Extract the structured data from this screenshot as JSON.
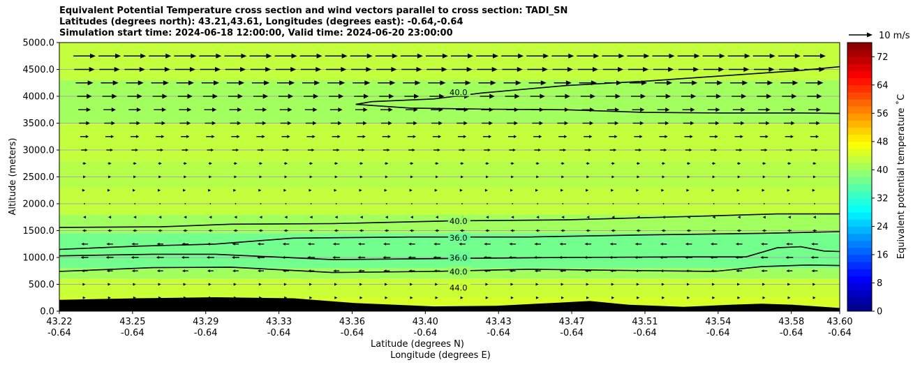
{
  "header": {
    "title_line1": "Equivalent Potential Temperature cross section and wind vectors parallel to cross section: TADI_SN",
    "title_line2": "Latitudes (degrees north): 43.21,43.61, Longitudes (degrees east): -0.64,-0.64",
    "title_line3": "Simulation start time: 2024-06-18 12:00:00, Valid time: 2024-06-20 23:00:00"
  },
  "chart_data": {
    "type": "heatmap",
    "xlabel_line1": "Latitude (degrees N)",
    "xlabel_line2": "Longitude (degrees E)",
    "ylabel": "Altitude (meters)",
    "ylim": [
      0,
      5000
    ],
    "xlim": [
      0,
      1
    ],
    "grid": "horizontal",
    "x_ticks": [
      {
        "lat": "43.22",
        "lon": "-0.64"
      },
      {
        "lat": "43.25",
        "lon": "-0.64"
      },
      {
        "lat": "43.29",
        "lon": "-0.64"
      },
      {
        "lat": "43.33",
        "lon": "-0.64"
      },
      {
        "lat": "43.36",
        "lon": "-0.64"
      },
      {
        "lat": "43.40",
        "lon": "-0.64"
      },
      {
        "lat": "43.43",
        "lon": "-0.64"
      },
      {
        "lat": "43.47",
        "lon": "-0.64"
      },
      {
        "lat": "43.51",
        "lon": "-0.64"
      },
      {
        "lat": "43.54",
        "lon": "-0.64"
      },
      {
        "lat": "43.58",
        "lon": "-0.64"
      },
      {
        "lat": "43.60",
        "lon": "-0.64"
      }
    ],
    "x_tick_positions": [
      0,
      0.0938,
      0.1876,
      0.2814,
      0.3752,
      0.469,
      0.5628,
      0.6566,
      0.7504,
      0.8442,
      0.938,
      1.0
    ],
    "y_ticks": [
      "0.0",
      "500.0",
      "1000.0",
      "1500.0",
      "2000.0",
      "2500.0",
      "3000.0",
      "3500.0",
      "4000.0",
      "4500.0",
      "5000.0"
    ],
    "y_tick_values": [
      0,
      500,
      1000,
      1500,
      2000,
      2500,
      3000,
      3500,
      4000,
      4500,
      5000
    ],
    "colorbar": {
      "label": "Equivalent potential temperature $^\\circ$C",
      "label_display": "Equivalent potential temperature ˚C",
      "min": 0,
      "max": 76,
      "step": 2,
      "ticks": [
        "0",
        "8",
        "16",
        "24",
        "32",
        "40",
        "48",
        "56",
        "64",
        "72"
      ],
      "tick_values": [
        0,
        8,
        16,
        24,
        32,
        40,
        48,
        56,
        64,
        72
      ],
      "colormap": "jet"
    },
    "vector_key": {
      "label": "10 m/s",
      "speed": 10
    },
    "fill_bands": [
      {
        "z_low": 0,
        "z_high": 260,
        "theta": 44.5
      },
      {
        "z_low": 260,
        "z_high": 600,
        "theta": 43.5
      },
      {
        "z_low": 600,
        "z_high": 800,
        "theta": 40.5
      },
      {
        "z_low": 800,
        "z_high": 1450,
        "theta": 37.0
      },
      {
        "z_low": 1450,
        "z_high": 1800,
        "theta": 40.5
      },
      {
        "z_low": 1800,
        "z_high": 2300,
        "theta": 43.0
      },
      {
        "z_low": 2300,
        "z_high": 2800,
        "theta": 42.0
      },
      {
        "z_low": 2800,
        "z_high": 3500,
        "theta": 43.0
      },
      {
        "z_low": 3500,
        "z_high": 4300,
        "theta": 40.5
      },
      {
        "z_low": 4300,
        "z_high": 5000,
        "theta": 43.0
      }
    ],
    "contours": [
      {
        "level": "40.0",
        "label_x": 0.5,
        "label_z": 4080,
        "points": [
          [
            0.38,
            3850
          ],
          [
            0.4,
            3900
          ],
          [
            0.48,
            3950
          ],
          [
            0.54,
            4060
          ],
          [
            0.65,
            4200
          ],
          [
            0.75,
            4280
          ],
          [
            0.85,
            4380
          ],
          [
            0.95,
            4480
          ],
          [
            1.0,
            4550
          ]
        ]
      },
      {
        "level": "40.0",
        "label_x": null,
        "label_z": null,
        "points": [
          [
            0.38,
            3850
          ],
          [
            0.45,
            3780
          ],
          [
            0.55,
            3760
          ],
          [
            0.65,
            3750
          ],
          [
            0.75,
            3700
          ],
          [
            0.85,
            3690
          ],
          [
            0.95,
            3690
          ],
          [
            1.0,
            3680
          ]
        ]
      },
      {
        "level": "40.0",
        "label_x": 0.5,
        "label_z": 1680,
        "points": [
          [
            0,
            1560
          ],
          [
            0.13,
            1570
          ],
          [
            0.22,
            1620
          ],
          [
            0.35,
            1630
          ],
          [
            0.5,
            1680
          ],
          [
            0.65,
            1700
          ],
          [
            0.8,
            1760
          ],
          [
            0.92,
            1810
          ],
          [
            1.0,
            1810
          ]
        ]
      },
      {
        "level": "36.0",
        "label_x": 0.5,
        "label_z": 1370,
        "points": [
          [
            0,
            1150
          ],
          [
            0.1,
            1210
          ],
          [
            0.2,
            1250
          ],
          [
            0.3,
            1360
          ],
          [
            0.45,
            1380
          ],
          [
            0.6,
            1380
          ],
          [
            0.75,
            1420
          ],
          [
            0.9,
            1450
          ],
          [
            1.0,
            1480
          ]
        ]
      },
      {
        "level": "36.0",
        "label_x": 0.5,
        "label_z": 1000,
        "points": [
          [
            0,
            1030
          ],
          [
            0.12,
            1060
          ],
          [
            0.2,
            1060
          ],
          [
            0.35,
            960
          ],
          [
            0.5,
            980
          ],
          [
            0.65,
            1000
          ],
          [
            0.8,
            1010
          ],
          [
            0.88,
            1010
          ],
          [
            0.92,
            1180
          ],
          [
            0.95,
            1200
          ],
          [
            0.98,
            1120
          ],
          [
            1.0,
            1110
          ]
        ]
      },
      {
        "level": "40.0",
        "label_x": 0.5,
        "label_z": 740,
        "points": [
          [
            0,
            740
          ],
          [
            0.12,
            810
          ],
          [
            0.22,
            820
          ],
          [
            0.35,
            720
          ],
          [
            0.48,
            740
          ],
          [
            0.6,
            780
          ],
          [
            0.72,
            760
          ],
          [
            0.84,
            740
          ],
          [
            0.9,
            830
          ],
          [
            0.96,
            860
          ],
          [
            1.0,
            850
          ]
        ]
      },
      {
        "level": "44.0",
        "label_x": 0.5,
        "label_z": 440,
        "points": []
      }
    ],
    "wind_vectors": {
      "rows_z": [
        250,
        500,
        750,
        1000,
        1250,
        1500,
        1750,
        2000,
        2250,
        2500,
        2750,
        3000,
        3250,
        3500,
        3750,
        4000,
        4250,
        4500,
        4750
      ],
      "row_u": [
        1.0,
        0.8,
        -2.6,
        -3.2,
        -2.8,
        -1.8,
        -1.2,
        0.4,
        0.5,
        1.2,
        1.5,
        2.8,
        3.6,
        4.6,
        5.2,
        6.2,
        7.4,
        8.6,
        9.4
      ]
    },
    "terrain": {
      "x": [
        0,
        0.1,
        0.2,
        0.3,
        0.38,
        0.48,
        0.56,
        0.64,
        0.68,
        0.73,
        0.8,
        0.86,
        0.9,
        0.94,
        1.0
      ],
      "z": [
        210,
        240,
        260,
        240,
        150,
        90,
        100,
        160,
        190,
        120,
        80,
        120,
        140,
        120,
        60
      ]
    }
  }
}
